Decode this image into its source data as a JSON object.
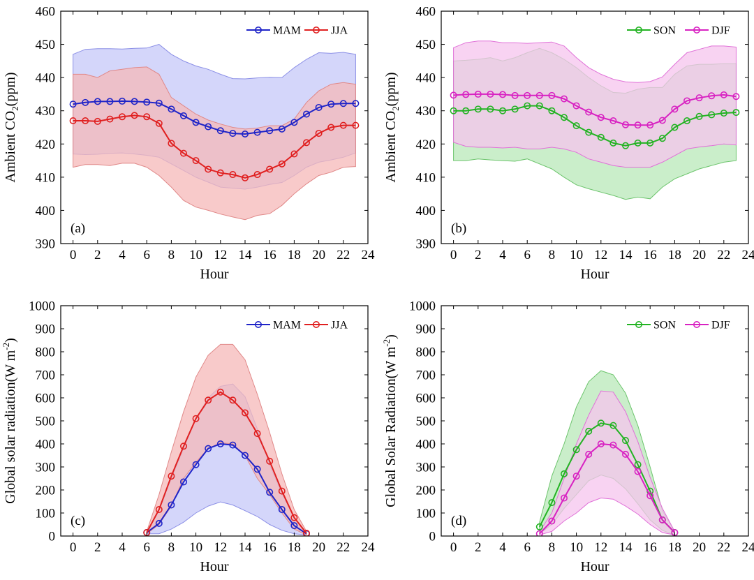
{
  "figure": {
    "panels": [
      "a",
      "b",
      "c",
      "d"
    ]
  },
  "chart_data": [
    {
      "id": "a",
      "type": "line",
      "panel_label": "(a)",
      "xlabel": "Hour",
      "ylabel_parts": [
        "Ambient CO",
        "2",
        "(ppm)"
      ],
      "xlim": [
        -1,
        24
      ],
      "ylim": [
        390,
        460
      ],
      "xticks": [
        "0",
        "2",
        "4",
        "6",
        "8",
        "10",
        "12",
        "14",
        "16",
        "18",
        "20",
        "22",
        "24"
      ],
      "yticks": [
        "390",
        "400",
        "410",
        "420",
        "430",
        "440",
        "450",
        "460"
      ],
      "legend_position": "top-right",
      "series": [
        {
          "name": "MAM",
          "color": "#1f24c8",
          "band_fill": "#c6c8f8",
          "band_edge": "#8b8fe6",
          "x": [
            0,
            1,
            2,
            3,
            4,
            5,
            6,
            7,
            8,
            9,
            10,
            11,
            12,
            13,
            14,
            15,
            16,
            17,
            18,
            19,
            20,
            21,
            22,
            23
          ],
          "values": [
            432,
            432.5,
            432.8,
            432.8,
            432.9,
            432.8,
            432.6,
            432.3,
            430.5,
            428.5,
            426.5,
            425.2,
            424,
            423.2,
            423,
            423.5,
            424,
            424.5,
            426.5,
            429,
            431,
            432,
            432.2,
            432.2
          ],
          "upper": [
            447,
            448.5,
            448.7,
            448.7,
            448.6,
            448.8,
            448.9,
            450,
            447,
            445,
            443.5,
            442.5,
            441,
            439.7,
            439.6,
            439.9,
            440.1,
            440,
            443,
            445.5,
            447.5,
            447.3,
            447.6,
            447
          ],
          "lower": [
            417,
            416.8,
            416.9,
            417.2,
            417.3,
            417,
            416.6,
            416,
            414,
            412,
            410,
            408.5,
            407,
            406.7,
            406.4,
            407,
            407.8,
            408.4,
            410.5,
            413,
            414.5,
            415.2,
            416,
            417.3
          ]
        },
        {
          "name": "JJA",
          "color": "#e02020",
          "band_fill": "#f5b8b8",
          "band_edge": "#e08888",
          "x": [
            0,
            1,
            2,
            3,
            4,
            5,
            6,
            7,
            8,
            9,
            10,
            11,
            12,
            13,
            14,
            15,
            16,
            17,
            18,
            19,
            20,
            21,
            22,
            23
          ],
          "values": [
            427,
            427,
            426.8,
            427.5,
            428.2,
            428.6,
            428.2,
            426.2,
            420.2,
            417.2,
            415,
            412.4,
            411.3,
            410.8,
            409.8,
            410.8,
            412.4,
            414,
            417,
            420.4,
            423.2,
            425,
            425.6,
            425.6
          ],
          "upper": [
            441,
            441,
            440,
            442,
            442.5,
            443,
            443.2,
            441,
            434,
            431.5,
            429,
            427.2,
            426,
            425,
            424.5,
            424.8,
            425.5,
            425.5,
            427.5,
            432.5,
            436,
            438,
            438.5,
            438
          ],
          "lower": [
            413,
            413.8,
            413.8,
            413.5,
            414.2,
            414.2,
            413,
            410.5,
            407,
            403,
            401,
            400,
            398.9,
            398,
            397.2,
            398.5,
            399,
            401.5,
            405,
            408,
            410.5,
            411.5,
            413,
            413.2
          ]
        }
      ]
    },
    {
      "id": "b",
      "type": "line",
      "panel_label": "(b)",
      "xlabel": "Hour",
      "ylabel_parts": [
        "Ambient CO",
        "2",
        "(ppm)"
      ],
      "xlim": [
        -1,
        24
      ],
      "ylim": [
        390,
        460
      ],
      "xticks": [
        "0",
        "2",
        "4",
        "6",
        "8",
        "10",
        "12",
        "14",
        "16",
        "18",
        "20",
        "22",
        "24"
      ],
      "yticks": [
        "390",
        "400",
        "410",
        "420",
        "430",
        "440",
        "450",
        "460"
      ],
      "legend_position": "top-right",
      "series": [
        {
          "name": "SON",
          "color": "#22b322",
          "band_fill": "#b8e8b8",
          "band_edge": "#6cc46c",
          "x": [
            0,
            1,
            2,
            3,
            4,
            5,
            6,
            7,
            8,
            9,
            10,
            11,
            12,
            13,
            14,
            15,
            16,
            17,
            18,
            19,
            20,
            21,
            22,
            23
          ],
          "values": [
            430,
            430,
            430.5,
            430.5,
            430,
            430.5,
            431.5,
            431.5,
            430,
            428,
            425.5,
            423.5,
            422,
            420.3,
            419.5,
            420.3,
            420.3,
            421.7,
            425,
            427,
            428.3,
            428.8,
            429.3,
            429.5
          ],
          "upper": [
            445,
            445.2,
            445.5,
            446,
            445,
            446,
            447.5,
            448.8,
            447.5,
            445.5,
            443,
            440,
            437.5,
            435.5,
            435.3,
            436.5,
            437,
            437,
            441,
            443.5,
            444,
            444,
            444.2,
            444.2
          ],
          "lower": [
            415,
            415,
            415.5,
            415.2,
            415,
            414.8,
            415.5,
            414,
            412.5,
            410,
            407.7,
            406.5,
            405.5,
            404.5,
            403.3,
            404,
            403.5,
            407,
            409.5,
            411,
            412.5,
            413.5,
            414.5,
            415
          ]
        },
        {
          "name": "DJF",
          "color": "#d822c2",
          "band_fill": "#f6c4ee",
          "band_edge": "#e070d8",
          "x": [
            0,
            1,
            2,
            3,
            4,
            5,
            6,
            7,
            8,
            9,
            10,
            11,
            12,
            13,
            14,
            15,
            16,
            17,
            18,
            19,
            20,
            21,
            22,
            23
          ],
          "values": [
            434.7,
            434.9,
            435,
            435,
            434.9,
            434.6,
            434.6,
            434.6,
            434.6,
            433.6,
            431.5,
            429.6,
            428,
            427,
            425.8,
            425.7,
            425.7,
            427.1,
            430.5,
            433,
            433.9,
            434.5,
            434.8,
            434.3
          ],
          "upper": [
            449,
            450.5,
            451,
            451,
            450.5,
            450.5,
            450.3,
            450.5,
            450.7,
            449.5,
            446,
            443,
            441,
            439.5,
            438.7,
            438.5,
            438.8,
            440.2,
            444,
            447.5,
            448.5,
            449.5,
            449.5,
            449.2
          ],
          "lower": [
            420.5,
            419.3,
            419,
            419,
            418.8,
            419,
            418.5,
            418.5,
            419,
            418.5,
            417.5,
            415.5,
            414.5,
            413.5,
            413,
            413,
            413,
            414.5,
            416.5,
            418.5,
            419.1,
            419.5,
            420,
            419.7
          ]
        }
      ]
    },
    {
      "id": "c",
      "type": "line",
      "panel_label": "(c)",
      "xlabel": "Hour",
      "ylabel_parts": [
        "Global solar radiation(W m",
        "-2",
        ")"
      ],
      "xlim": [
        -1,
        24
      ],
      "ylim": [
        0,
        1000
      ],
      "xticks": [
        "0",
        "2",
        "4",
        "6",
        "8",
        "10",
        "12",
        "14",
        "16",
        "18",
        "20",
        "22",
        "24"
      ],
      "yticks": [
        "0",
        "100",
        "200",
        "300",
        "400",
        "500",
        "600",
        "700",
        "800",
        "900",
        "1000"
      ],
      "legend_position": "top-right",
      "series": [
        {
          "name": "MAM",
          "color": "#1f24c8",
          "band_fill": "#c6c8f8",
          "band_edge": "#8b8fe6",
          "x": [
            6,
            7,
            8,
            9,
            10,
            11,
            12,
            13,
            14,
            15,
            16,
            17,
            18,
            19
          ],
          "values": [
            15,
            55,
            135,
            235,
            310,
            380,
            400,
            395,
            350,
            290,
            190,
            115,
            45,
            10
          ],
          "upper": [
            15,
            110,
            250,
            380,
            510,
            600,
            650,
            660,
            605,
            465,
            310,
            185,
            80,
            15
          ],
          "lower": [
            10,
            10,
            30,
            60,
            100,
            130,
            148,
            135,
            110,
            85,
            50,
            25,
            10,
            5
          ]
        },
        {
          "name": "JJA",
          "color": "#e02020",
          "band_fill": "#f5b8b8",
          "band_edge": "#e08888",
          "x": [
            6,
            7,
            8,
            9,
            10,
            11,
            12,
            13,
            14,
            15,
            16,
            17,
            18,
            19
          ],
          "values": [
            15,
            115,
            260,
            390,
            510,
            590,
            625,
            590,
            535,
            445,
            325,
            195,
            80,
            12
          ],
          "upper": [
            20,
            180,
            365,
            540,
            690,
            785,
            832,
            832,
            765,
            615,
            450,
            270,
            115,
            20
          ],
          "lower": [
            10,
            50,
            130,
            250,
            320,
            380,
            405,
            400,
            350,
            250,
            180,
            100,
            30,
            5
          ]
        }
      ]
    },
    {
      "id": "d",
      "type": "line",
      "panel_label": "(d)",
      "xlabel": "Hour",
      "ylabel_parts": [
        "Global Solar Radiation(W m",
        "-2",
        ")"
      ],
      "xlim": [
        -1,
        24
      ],
      "ylim": [
        0,
        1000
      ],
      "xticks": [
        "0",
        "2",
        "4",
        "6",
        "8",
        "10",
        "12",
        "14",
        "16",
        "18",
        "20",
        "22",
        "24"
      ],
      "yticks": [
        "0",
        "100",
        "200",
        "300",
        "400",
        "500",
        "600",
        "700",
        "800",
        "900",
        "1000"
      ],
      "legend_position": "top-right",
      "series": [
        {
          "name": "SON",
          "color": "#22b322",
          "band_fill": "#b8e8b8",
          "band_edge": "#6cc46c",
          "x": [
            7,
            8,
            9,
            10,
            11,
            12,
            13,
            14,
            15,
            16,
            17,
            18
          ],
          "values": [
            40,
            145,
            270,
            375,
            455,
            490,
            480,
            415,
            310,
            195,
            70,
            15
          ],
          "upper": [
            60,
            260,
            400,
            560,
            670,
            718,
            700,
            620,
            480,
            300,
            110,
            20
          ],
          "lower": [
            10,
            50,
            120,
            180,
            240,
            265,
            250,
            205,
            140,
            70,
            25,
            5
          ]
        },
        {
          "name": "DJF",
          "color": "#d822c2",
          "band_fill": "#f6c4ee",
          "band_edge": "#e070d8",
          "x": [
            7,
            8,
            9,
            10,
            11,
            12,
            13,
            14,
            15,
            16,
            17,
            18
          ],
          "values": [
            10,
            65,
            165,
            260,
            355,
            400,
            395,
            355,
            280,
            175,
            70,
            15
          ],
          "upper": [
            20,
            100,
            250,
            400,
            525,
            630,
            625,
            540,
            410,
            255,
            120,
            20
          ],
          "lower": [
            5,
            20,
            65,
            100,
            145,
            165,
            160,
            130,
            95,
            50,
            15,
            5
          ]
        }
      ]
    }
  ]
}
